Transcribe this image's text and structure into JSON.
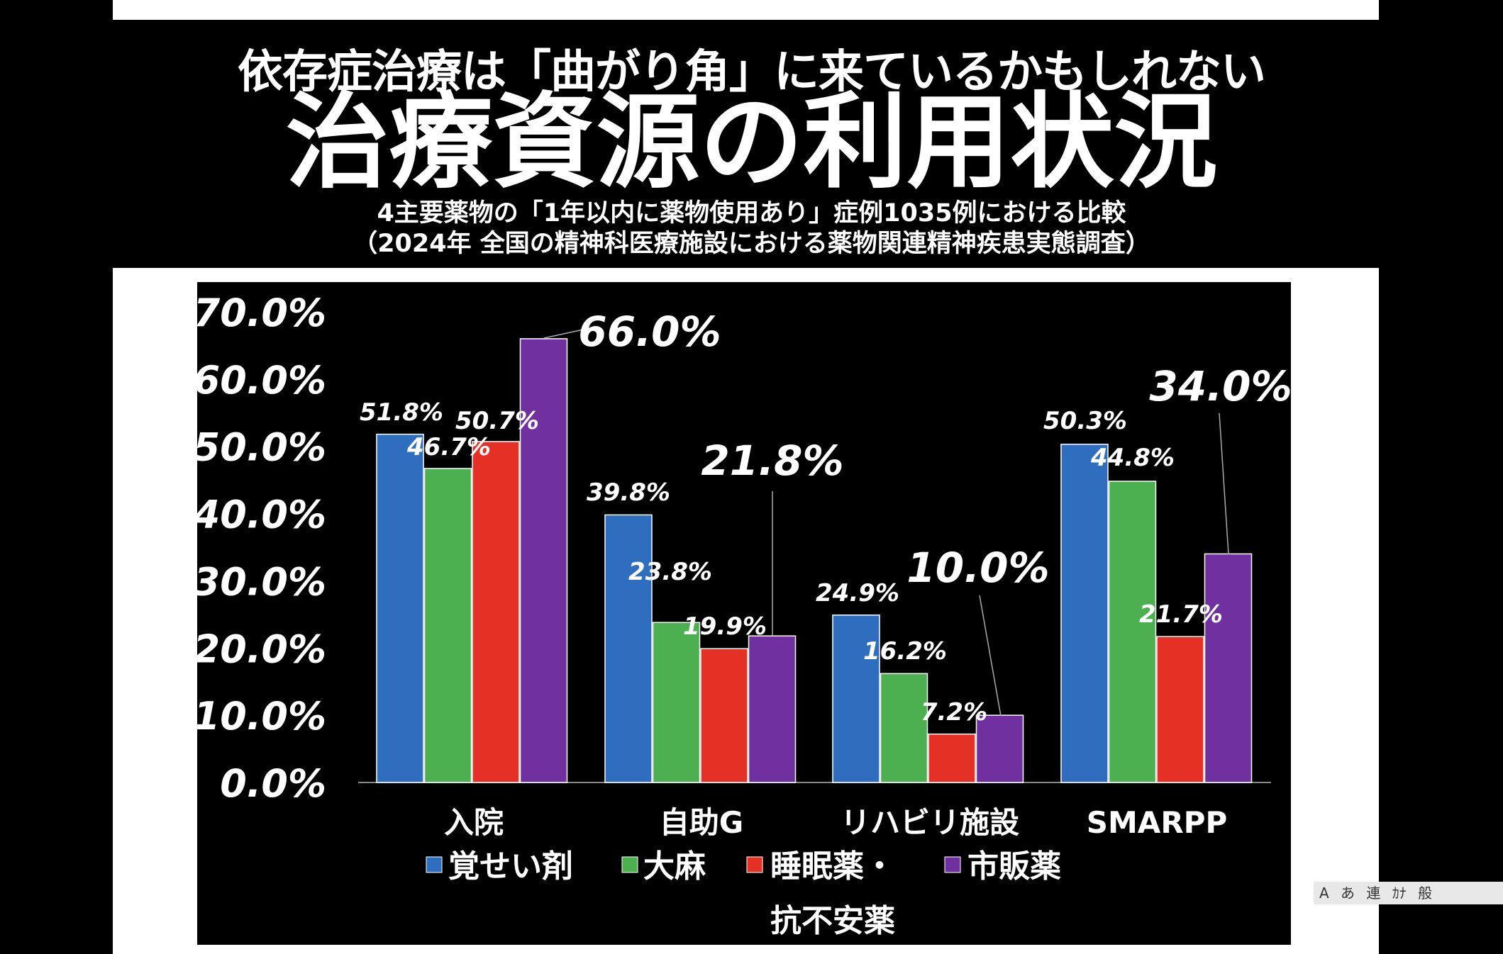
{
  "header": {
    "subtitle": "依存症治療は「曲がり角」に来ているかもしれない",
    "title": "治療資源の利用状況",
    "caption_line1": "4主要薬物の「1年以内に薬物使用あり」症例1035例における比較",
    "caption_line2": "（2024年 全国の精神科医療施設における薬物関連精神疾患実態調査）"
  },
  "ime": {
    "items": [
      "A",
      "あ",
      "連",
      "ｶﾅ",
      "般"
    ]
  },
  "chart_data": {
    "type": "bar",
    "categories": [
      "入院",
      "自助G",
      "リハビリ施設",
      "SMARPP"
    ],
    "series": [
      {
        "name": "覚せい剤",
        "values": [
          51.8,
          39.8,
          24.9,
          50.3
        ],
        "color": "#2f6dbf"
      },
      {
        "name": "大麻",
        "values": [
          46.7,
          23.8,
          16.2,
          44.8
        ],
        "color": "#4caf50"
      },
      {
        "name": "睡眠薬・抗不安薬",
        "values": [
          50.7,
          19.9,
          7.2,
          21.7
        ],
        "color": "#e53025"
      },
      {
        "name": "市販薬",
        "values": [
          66.0,
          21.8,
          10.0,
          34.0
        ],
        "color": "#7030a0"
      }
    ],
    "data_labels": [
      [
        "51.8%",
        "39.8%",
        "24.9%",
        "50.3%"
      ],
      [
        "46.7%",
        "23.8%",
        "16.2%",
        "44.8%"
      ],
      [
        "50.7%",
        "19.9%",
        "7.2%",
        "21.7%"
      ],
      [
        "66.0%",
        "21.8%",
        "10.0%",
        "34.0%"
      ]
    ],
    "legend_labels": [
      "覚せい剤",
      "大麻",
      "睡眠薬・",
      "抗不安薬",
      "市販薬"
    ],
    "yticks": [
      "0.0%",
      "10.0%",
      "20.0%",
      "30.0%",
      "40.0%",
      "50.0%",
      "60.0%",
      "70.0%"
    ],
    "ylim": [
      0,
      70
    ],
    "grid": false,
    "legend_position": "bottom"
  }
}
